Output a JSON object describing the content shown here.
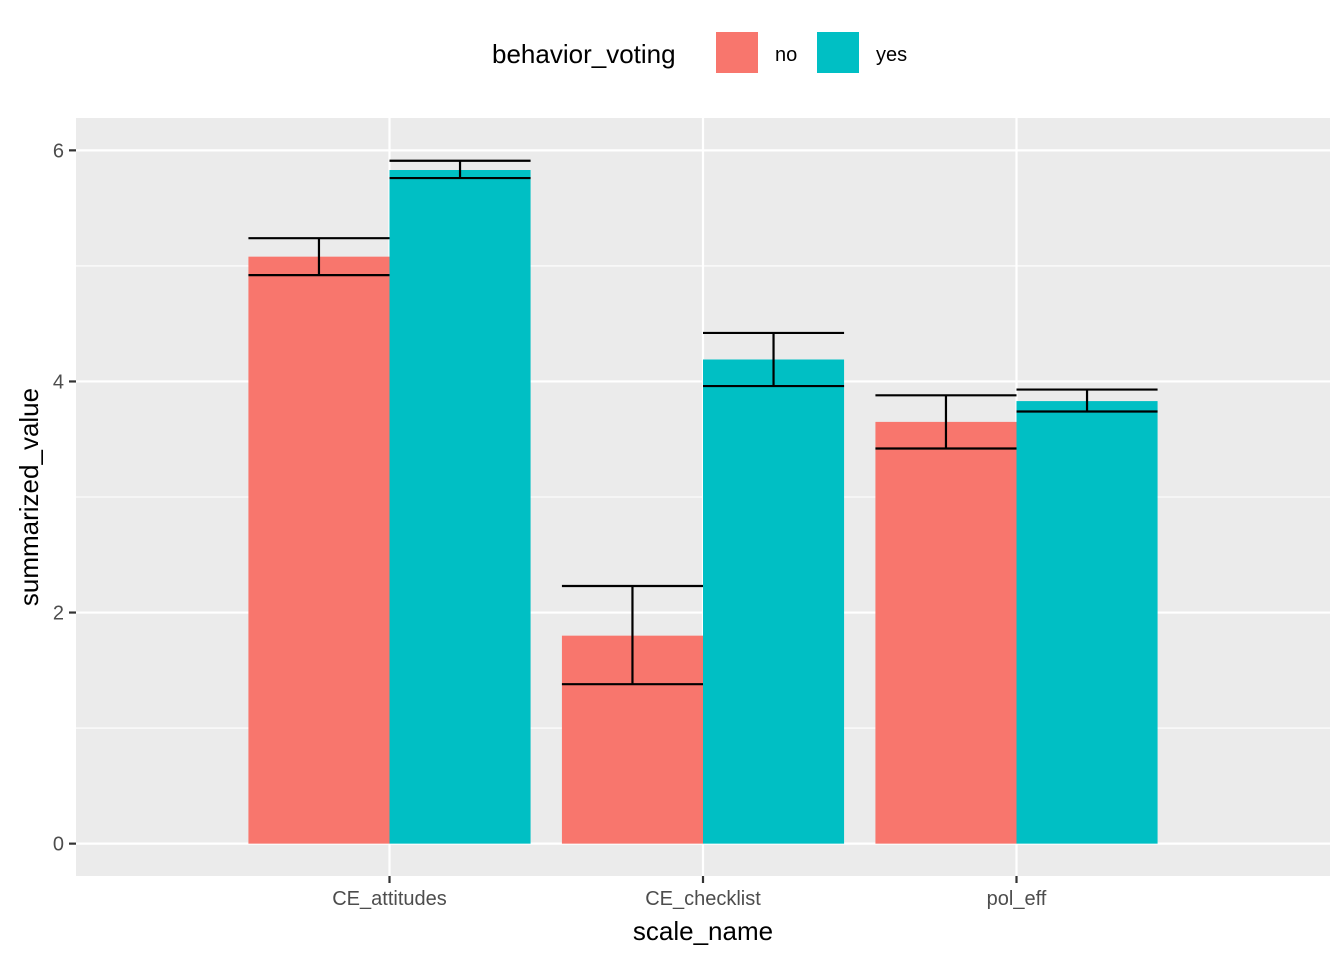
{
  "chart_data": {
    "type": "bar",
    "title": "",
    "xlabel": "scale_name",
    "ylabel": "summarized_value",
    "categories": [
      "CE_attitudes",
      "CE_checklist",
      "pol_eff"
    ],
    "ylim": [
      -0.28,
      6.28
    ],
    "yticks": [
      0,
      2,
      4,
      6
    ],
    "grid": true,
    "legend": {
      "title": "behavior_voting",
      "position": "top",
      "entries": [
        "no",
        "yes"
      ]
    },
    "series": [
      {
        "name": "no",
        "color": "#F8766D",
        "values": [
          5.08,
          1.8,
          3.65
        ],
        "error_low": [
          4.92,
          1.38,
          3.42
        ],
        "error_high": [
          5.24,
          2.23,
          3.88
        ]
      },
      {
        "name": "yes",
        "color": "#00BFC4",
        "values": [
          5.83,
          4.19,
          3.83
        ],
        "error_low": [
          5.76,
          3.96,
          3.74
        ],
        "error_high": [
          5.91,
          4.42,
          3.93
        ]
      }
    ],
    "colors": {
      "panel": "#EBEBEB",
      "grid": "#FFFFFF",
      "tick": "#333333",
      "errorbar": "#000000"
    }
  }
}
